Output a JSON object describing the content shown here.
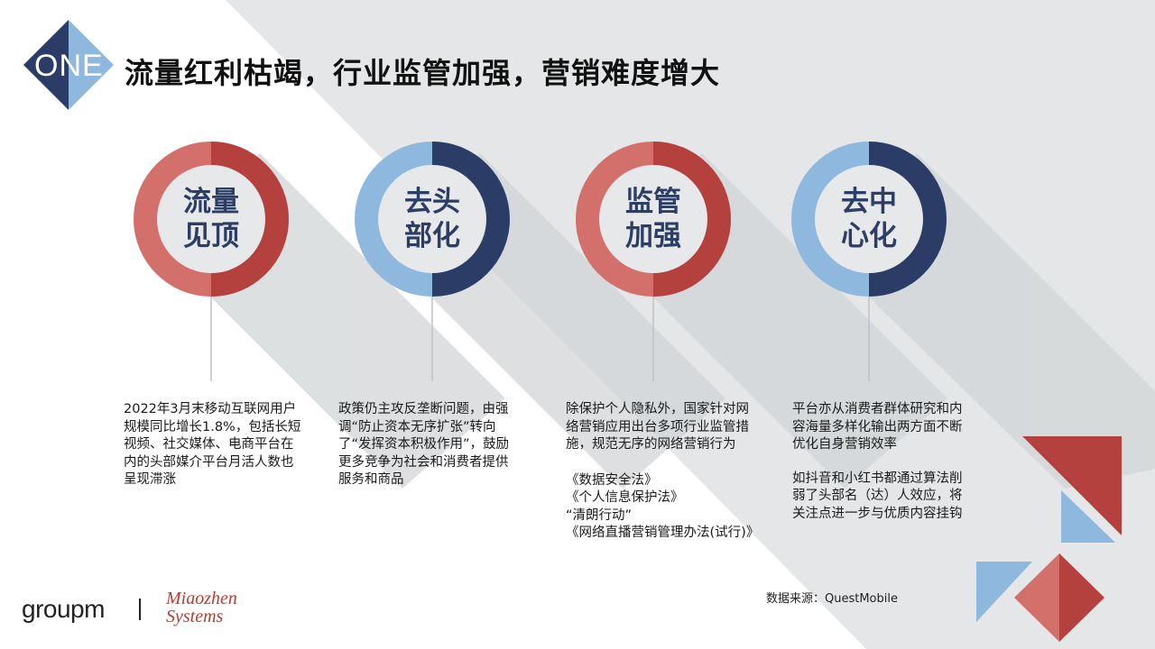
{
  "header": {
    "badge": "ONE",
    "title": "流量红利枯竭，行业监管加强，营销难度增大"
  },
  "colors": {
    "red": "#b5413f",
    "red_light": "#d4706c",
    "navy": "#2b3d66",
    "blue_light": "#8fb8de",
    "label_text": "#2c3e66"
  },
  "sections": [
    {
      "label_line1": "流量",
      "label_line2": "见顶",
      "ring_scheme": "red",
      "paragraphs": [
        "2022年3月末移动互联网用户规模同比增长1.8%，包括长短视频、社交媒体、电商平台在内的头部媒介平台月活人数也呈现滞涨"
      ]
    },
    {
      "label_line1": "去头",
      "label_line2": "部化",
      "ring_scheme": "blue",
      "paragraphs": [
        "政策仍主攻反垄断问题，由强调“防止资本无序扩张”转向了“发挥资本积极作用”，鼓励更多竞争为社会和消费者提供服务和商品"
      ]
    },
    {
      "label_line1": "监管",
      "label_line2": "加强",
      "ring_scheme": "red",
      "paragraphs": [
        "除保护个人隐私外，国家针对网络营销应用出台多项行业监管措施，规范无序的网络营销行为"
      ],
      "laws": [
        "《数据安全法》",
        "《个人信息保护法》",
        "“清朗行动”",
        "《网络直播营销管理办法(试行)》"
      ]
    },
    {
      "label_line1": "去中",
      "label_line2": "心化",
      "ring_scheme": "blue",
      "paragraphs": [
        "平台亦从消费者群体研究和内容海量多样化输出两方面不断优化自身营销效率",
        "如抖音和小红书都通过算法削弱了头部名（达）人效应，将关注点进一步与优质内容挂钩"
      ]
    }
  ],
  "footer": {
    "source": "数据来源：QuestMobile",
    "logo_groupm": "groupm",
    "logo_miaozhen_line1": "Miaozhen",
    "logo_miaozhen_line2": "Systems"
  }
}
